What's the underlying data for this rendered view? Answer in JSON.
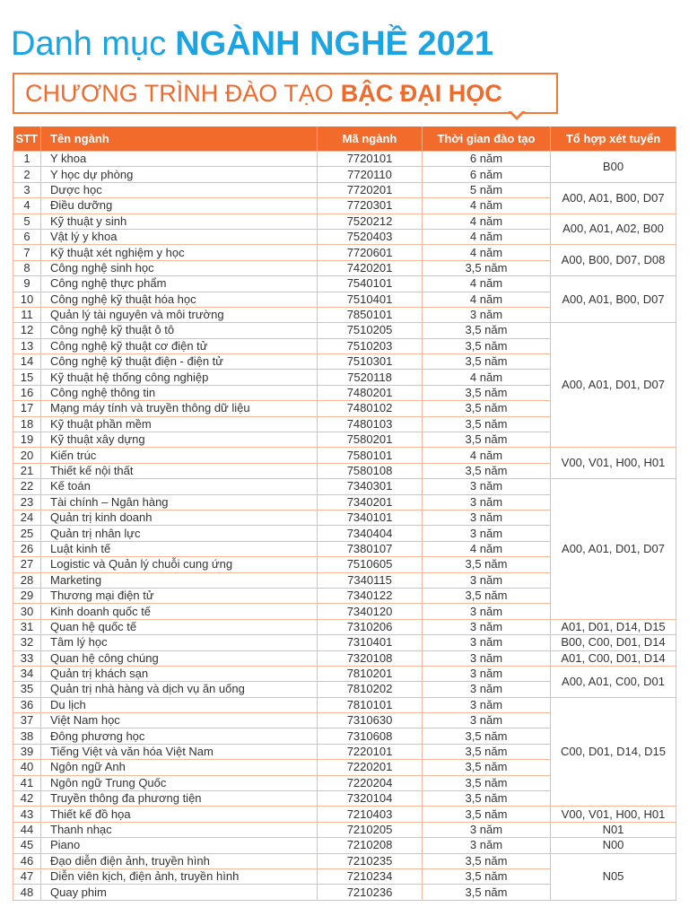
{
  "title": {
    "light": "Danh mục ",
    "bold": "NGÀNH NGHỀ 2021"
  },
  "subtitle": {
    "light": "CHƯƠNG TRÌNH ĐÀO TẠO ",
    "bold": "BẬC ĐẠI HỌC"
  },
  "colors": {
    "blue": "#1ba4e2",
    "orange": "#f26b2a"
  },
  "table": {
    "headers": [
      "STT",
      "Tên ngành",
      "Mã ngành",
      "Thời gian đào tạo",
      "Tổ hợp xét tuyển"
    ],
    "rows": [
      [
        "1",
        "Y khoa",
        "7720101",
        "6 năm"
      ],
      [
        "2",
        "Y học dự phòng",
        "7720110",
        "6 năm"
      ],
      [
        "3",
        "Dược học",
        "7720201",
        "5 năm"
      ],
      [
        "4",
        "Điều dưỡng",
        "7720301",
        "4 năm"
      ],
      [
        "5",
        "Kỹ thuật y sinh",
        "7520212",
        "4 năm"
      ],
      [
        "6",
        "Vật lý y khoa",
        "7520403",
        "4 năm"
      ],
      [
        "7",
        "Kỹ thuật xét nghiệm y học",
        "7720601",
        "4 năm"
      ],
      [
        "8",
        "Công nghệ sinh học",
        "7420201",
        "3,5 năm"
      ],
      [
        "9",
        "Công nghệ thực phẩm",
        "7540101",
        "4 năm"
      ],
      [
        "10",
        "Công nghệ kỹ thuật hóa học",
        "7510401",
        "4 năm"
      ],
      [
        "11",
        "Quản lý tài nguyên và môi trường",
        "7850101",
        "3 năm"
      ],
      [
        "12",
        "Công nghệ kỹ thuật ô tô",
        "7510205",
        "3,5 năm"
      ],
      [
        "13",
        "Công nghệ kỹ thuật cơ điện tử",
        "7510203",
        "3,5 năm"
      ],
      [
        "14",
        "Công nghệ kỹ thuật điện - điện tử",
        "7510301",
        "3,5 năm"
      ],
      [
        "15",
        "Kỹ thuật hệ thống công nghiệp",
        "7520118",
        "4 năm"
      ],
      [
        "16",
        "Công nghệ thông tin",
        "7480201",
        "3,5 năm"
      ],
      [
        "17",
        "Mạng máy tính và truyền thông dữ liệu",
        "7480102",
        "3,5 năm"
      ],
      [
        "18",
        "Kỹ thuật phần mềm",
        "7480103",
        "3,5 năm"
      ],
      [
        "19",
        "Kỹ thuật xây dựng",
        "7580201",
        "3,5 năm"
      ],
      [
        "20",
        "Kiến trúc",
        "7580101",
        "4 năm"
      ],
      [
        "21",
        "Thiết kế nội thất",
        "7580108",
        "3,5 năm"
      ],
      [
        "22",
        "Kế toán",
        "7340301",
        "3 năm"
      ],
      [
        "23",
        "Tài chính – Ngân hàng",
        "7340201",
        "3 năm"
      ],
      [
        "24",
        "Quản trị kinh doanh",
        "7340101",
        "3 năm"
      ],
      [
        "25",
        "Quản trị nhân lực",
        "7340404",
        "3 năm"
      ],
      [
        "26",
        "Luật kinh tế",
        "7380107",
        "4 năm"
      ],
      [
        "27",
        "Logistic và Quản lý chuỗi cung ứng",
        "7510605",
        "3,5 năm"
      ],
      [
        "28",
        "Marketing",
        "7340115",
        "3 năm"
      ],
      [
        "29",
        "Thương mại điện tử",
        "7340122",
        "3,5 năm"
      ],
      [
        "30",
        "Kinh doanh quốc tế",
        "7340120",
        "3 năm"
      ],
      [
        "31",
        "Quan hệ quốc tế",
        "7310206",
        "3 năm"
      ],
      [
        "32",
        "Tâm lý học",
        "7310401",
        "3 năm"
      ],
      [
        "33",
        "Quan hệ công chúng",
        "7320108",
        "3 năm"
      ],
      [
        "34",
        "Quản trị khách sạn",
        "7810201",
        "3 năm"
      ],
      [
        "35",
        "Quản trị nhà hàng và dịch vụ ăn uống",
        "7810202",
        "3 năm"
      ],
      [
        "36",
        "Du lịch",
        "7810101",
        "3 năm"
      ],
      [
        "37",
        "Việt Nam học",
        "7310630",
        "3 năm"
      ],
      [
        "38",
        "Đông phương học",
        "7310608",
        "3,5 năm"
      ],
      [
        "39",
        "Tiếng Việt và văn hóa Việt Nam",
        "7220101",
        "3,5 năm"
      ],
      [
        "40",
        "Ngôn ngữ Anh",
        "7220201",
        "3,5 năm"
      ],
      [
        "41",
        "Ngôn ngữ Trung Quốc",
        "7220204",
        "3,5 năm"
      ],
      [
        "42",
        "Truyền thông đa phương tiện",
        "7320104",
        "3,5 năm"
      ],
      [
        "43",
        "Thiết kế đồ họa",
        "7210403",
        "3,5 năm"
      ],
      [
        "44",
        "Thanh nhạc",
        "7210205",
        "3 năm"
      ],
      [
        "45",
        "Piano",
        "7210208",
        "3 năm"
      ],
      [
        "46",
        "Đạo diễn điện ảnh, truyền hình",
        "7210235",
        "3,5 năm"
      ],
      [
        "47",
        "Diễn viên kịch, điện ảnh, truyền hình",
        "7210234",
        "3,5 năm"
      ],
      [
        "48",
        "Quay phim",
        "7210236",
        "3,5 năm"
      ]
    ],
    "combinations": [
      {
        "from": 1,
        "to": 2,
        "value": "B00"
      },
      {
        "from": 3,
        "to": 4,
        "value": "A00, A01, B00, D07"
      },
      {
        "from": 5,
        "to": 6,
        "value": "A00, A01, A02, B00"
      },
      {
        "from": 7,
        "to": 8,
        "value": "A00, B00, D07, D08"
      },
      {
        "from": 9,
        "to": 11,
        "value": "A00, A01, B00, D07"
      },
      {
        "from": 12,
        "to": 19,
        "value": "A00, A01, D01, D07"
      },
      {
        "from": 20,
        "to": 21,
        "value": "V00, V01, H00, H01"
      },
      {
        "from": 22,
        "to": 30,
        "value": "A00, A01, D01, D07"
      },
      {
        "from": 31,
        "to": 31,
        "value": "A01, D01, D14, D15"
      },
      {
        "from": 32,
        "to": 32,
        "value": "B00, C00, D01, D14"
      },
      {
        "from": 33,
        "to": 33,
        "value": "A01, C00, D01, D14"
      },
      {
        "from": 34,
        "to": 35,
        "value": "A00, A01, C00, D01"
      },
      {
        "from": 36,
        "to": 42,
        "value": "C00, D01, D14, D15"
      },
      {
        "from": 43,
        "to": 43,
        "value": "V00, V01, H00, H01"
      },
      {
        "from": 44,
        "to": 44,
        "value": "N01"
      },
      {
        "from": 45,
        "to": 45,
        "value": "N00"
      },
      {
        "from": 46,
        "to": 48,
        "value": "N05"
      }
    ]
  }
}
